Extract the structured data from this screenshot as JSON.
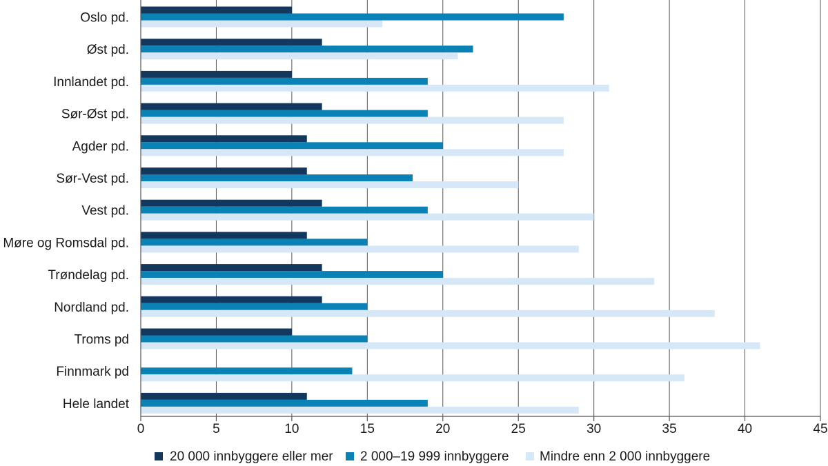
{
  "chart_data": {
    "type": "bar",
    "orientation": "horizontal",
    "categories": [
      "Oslo pd.",
      "Øst pd.",
      "Innlandet pd.",
      "Sør-Øst pd.",
      "Agder pd.",
      "Sør-Vest pd.",
      "Vest pd.",
      "Møre og Romsdal pd.",
      "Trøndelag pd.",
      "Nordland pd.",
      "Troms pd",
      "Finnmark pd",
      "Hele landet"
    ],
    "series": [
      {
        "name": "20 000 innbyggere eller mer",
        "color": "#14375e",
        "values": [
          10,
          12,
          10,
          12,
          11,
          11,
          12,
          11,
          12,
          12,
          10,
          null,
          11
        ]
      },
      {
        "name": "2 000–19 999 innbyggere",
        "color": "#0b82b5",
        "values": [
          28,
          22,
          19,
          19,
          20,
          18,
          19,
          15,
          20,
          15,
          15,
          14,
          19
        ]
      },
      {
        "name": "Mindre enn 2 000 innbyggere",
        "color": "#d6e8f7",
        "values": [
          16,
          21,
          31,
          28,
          28,
          25,
          30,
          29,
          34,
          38,
          41,
          36,
          29
        ]
      }
    ],
    "xlim": [
      0,
      45
    ],
    "xticks": [
      "0",
      "5",
      "10",
      "15",
      "20",
      "25",
      "30",
      "35",
      "40",
      "45"
    ],
    "grid": true,
    "legend": "bottom",
    "title": "",
    "xlabel": "",
    "ylabel": ""
  }
}
